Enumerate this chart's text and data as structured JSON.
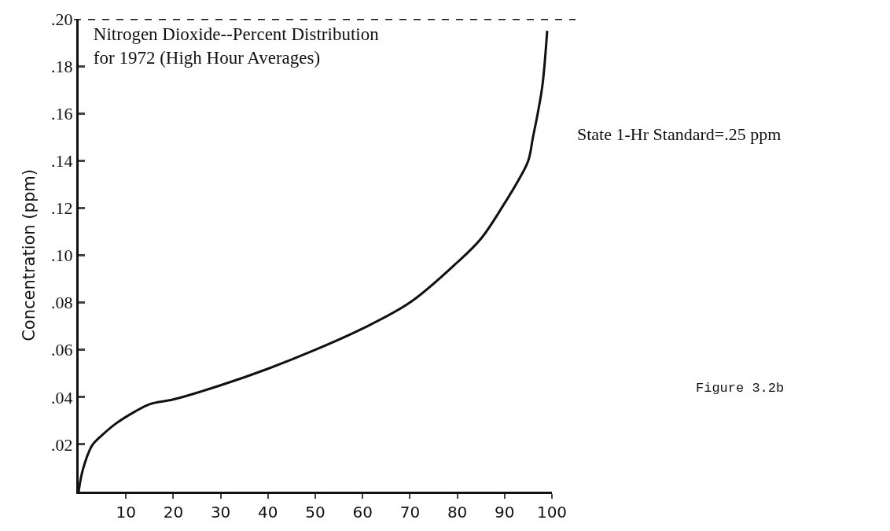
{
  "chart_data": {
    "type": "line",
    "title": "Nitrogen Dioxide--Percent Distribution\nfor 1972 (High Hour Averages)",
    "ylabel": "Concentration (ppm)",
    "x": [
      0,
      0.5,
      1,
      2,
      3,
      5,
      8,
      12,
      15,
      20,
      30,
      40,
      50,
      60,
      70,
      80,
      85,
      90,
      93,
      95,
      96,
      97,
      98,
      99
    ],
    "series": [
      {
        "color": "#111111",
        "values": [
          0,
          0.006,
          0.01,
          0.016,
          0.02,
          0.024,
          0.029,
          0.034,
          0.037,
          0.039,
          0.045,
          0.052,
          0.06,
          0.069,
          0.08,
          0.097,
          0.107,
          0.122,
          0.132,
          0.14,
          0.15,
          0.16,
          0.172,
          0.195
        ]
      }
    ],
    "xlim": [
      0,
      100
    ],
    "ylim": [
      0,
      0.2
    ],
    "xticks": [
      10,
      20,
      30,
      40,
      50,
      60,
      70,
      80,
      90,
      100
    ],
    "yticks": [
      {
        "value": 0.02,
        "label": ".02"
      },
      {
        "value": 0.04,
        "label": ".04"
      },
      {
        "value": 0.06,
        "label": ".06"
      },
      {
        "value": 0.08,
        "label": ".08"
      },
      {
        "value": 0.1,
        "label": ".10"
      },
      {
        "value": 0.12,
        "label": ".12"
      },
      {
        "value": 0.14,
        "label": ".14"
      },
      {
        "value": 0.16,
        "label": ".16"
      },
      {
        "value": 0.18,
        "label": ".18"
      },
      {
        "value": 0.2,
        "label": ".20"
      }
    ],
    "ref_lines": [
      {
        "axis": "y",
        "value": 0.2,
        "line_style": "dashed",
        "color": "#111111"
      }
    ],
    "annotations": [
      "State 1-Hr Standard=.25 ppm",
      "Figure 3.2b"
    ],
    "marker": "none",
    "line_style": "solid"
  }
}
